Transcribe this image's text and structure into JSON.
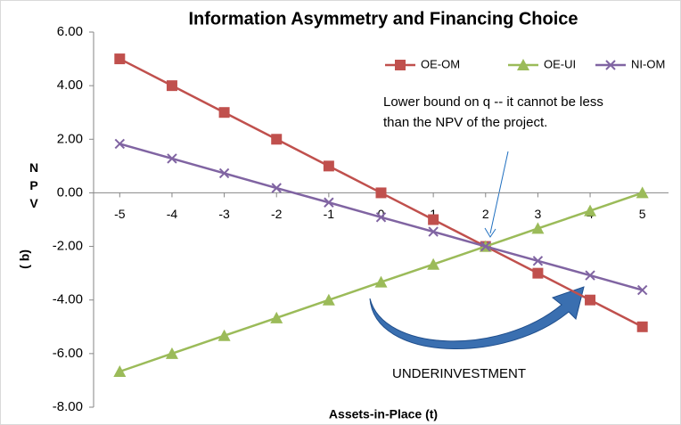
{
  "chart_data": {
    "type": "line",
    "title": "Information Asymmetry and Financing Choice",
    "x_label": "Assets-in-Place (t)",
    "y_label": [
      "NPV",
      "(q )"
    ],
    "x": [
      -5,
      -4,
      -3,
      -2,
      -1,
      0,
      1,
      2,
      3,
      4,
      5
    ],
    "xlim": [
      -5.5,
      5.5
    ],
    "xticks": [
      -5,
      -4,
      -3,
      -2,
      -1,
      0,
      1,
      2,
      3,
      4,
      5
    ],
    "ylim": [
      -8,
      6
    ],
    "yticks": [
      {
        "value": -8,
        "label": "-8.00"
      },
      {
        "value": -6,
        "label": "-6.00"
      },
      {
        "value": -4,
        "label": "-4.00"
      },
      {
        "value": -2,
        "label": "-2.00"
      },
      {
        "value": 0,
        "label": "0.00"
      },
      {
        "value": 2,
        "label": "2.00"
      },
      {
        "value": 4,
        "label": "4.00"
      },
      {
        "value": 6,
        "label": "6.00"
      }
    ],
    "series": [
      {
        "name": "OE-OM",
        "color": "#c0504d",
        "marker": "square",
        "values": [
          5,
          4,
          3,
          2,
          1,
          0,
          -1,
          -2,
          -3,
          -4,
          -5
        ]
      },
      {
        "name": "OE-UI",
        "color": "#9bbb59",
        "marker": "triangle",
        "values": [
          -6.67,
          -6,
          -5.33,
          -4.67,
          -4,
          -3.33,
          -2.67,
          -2,
          -1.33,
          -0.67,
          0
        ]
      },
      {
        "name": "NI-OM",
        "color": "#8064a2",
        "marker": "x",
        "values": [
          1.83,
          1.28,
          0.73,
          0.18,
          -0.36,
          -0.91,
          -1.45,
          -2,
          -2.54,
          -3.08,
          -3.63
        ]
      }
    ],
    "legend": "top-right",
    "annotations": [
      "Lower bound on q -- it cannot be less",
      "than the NPV of the project.",
      "UNDERINVESTMENT"
    ]
  }
}
